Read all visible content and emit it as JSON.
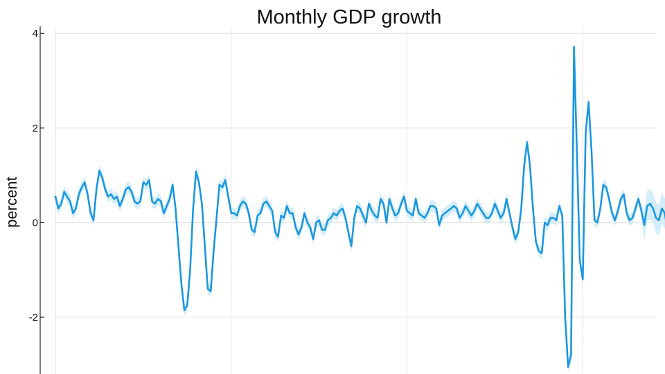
{
  "chart_data": {
    "type": "line",
    "title": "Monthly GDP growth",
    "xlabel": "",
    "ylabel": "percent",
    "ylim": [
      -3.2,
      4.15
    ],
    "xlim": [
      0,
      205
    ],
    "yticks": [
      -2,
      0,
      2,
      4
    ],
    "ytick_labels": [
      "-2",
      "0",
      "2",
      "4"
    ],
    "xgrid_at": [
      0,
      60,
      120,
      180
    ],
    "grid": true,
    "legend": "none",
    "colors": {
      "line": "#1b97df",
      "band": "#c8e9f8",
      "grid": "#e4e4e4",
      "axis": "#222222"
    },
    "series": [
      {
        "values": [
          0.55,
          0.3,
          0.4,
          0.65,
          0.55,
          0.45,
          0.2,
          0.3,
          0.6,
          0.75,
          0.85,
          0.6,
          0.2,
          0.05,
          0.7,
          1.1,
          0.95,
          0.7,
          0.55,
          0.6,
          0.5,
          0.55,
          0.35,
          0.5,
          0.7,
          0.75,
          0.65,
          0.45,
          0.4,
          0.45,
          0.85,
          0.8,
          0.9,
          0.45,
          0.4,
          0.5,
          0.45,
          0.2,
          0.35,
          0.5,
          0.8,
          0.3,
          -0.5,
          -1.3,
          -1.85,
          -1.75,
          -1.0,
          0.3,
          1.08,
          0.85,
          0.4,
          -0.5,
          -1.4,
          -1.45,
          -0.6,
          0.1,
          0.8,
          0.75,
          0.9,
          0.55,
          0.2,
          0.2,
          0.15,
          0.35,
          0.45,
          0.4,
          0.2,
          -0.15,
          -0.2,
          0.15,
          0.2,
          0.4,
          0.45,
          0.35,
          0.25,
          -0.2,
          -0.3,
          0.15,
          0.1,
          0.35,
          0.2,
          0.2,
          -0.1,
          -0.25,
          -0.1,
          0.2,
          0.0,
          -0.1,
          -0.35,
          0.0,
          0.05,
          -0.15,
          -0.15,
          0.05,
          0.1,
          0.2,
          0.15,
          0.25,
          0.3,
          0.1,
          -0.2,
          -0.5,
          0.1,
          0.35,
          0.3,
          0.15,
          0.0,
          0.4,
          0.25,
          0.15,
          0.1,
          0.5,
          0.4,
          0.0,
          0.5,
          0.3,
          0.15,
          0.2,
          0.4,
          0.55,
          0.25,
          0.2,
          0.15,
          0.5,
          0.2,
          0.15,
          0.1,
          0.2,
          0.35,
          0.35,
          0.3,
          -0.05,
          0.15,
          0.2,
          0.25,
          0.3,
          0.35,
          0.3,
          0.1,
          0.2,
          0.35,
          0.25,
          0.15,
          0.25,
          0.4,
          0.3,
          0.2,
          0.1,
          0.1,
          0.2,
          0.4,
          0.25,
          0.1,
          0.2,
          0.5,
          0.2,
          -0.1,
          -0.35,
          -0.2,
          0.3,
          1.2,
          1.7,
          1.2,
          0.3,
          -0.4,
          -0.6,
          -0.65,
          0.0,
          -0.05,
          0.1,
          0.1,
          0.05,
          0.35,
          0.15,
          -2.0,
          -3.05,
          -2.8,
          3.72,
          1.5,
          -0.8,
          -1.2,
          1.9,
          2.55,
          1.5,
          0.05,
          0.0,
          0.3,
          0.8,
          0.75,
          0.5,
          0.2,
          0.05,
          0.25,
          0.5,
          0.6,
          0.2,
          0.05,
          0.1,
          0.3,
          0.5,
          0.25,
          -0.05,
          0.35,
          0.4,
          0.3,
          0.1,
          0.05,
          0.3,
          0.2,
          -0.2,
          0.1,
          0.4,
          0.4
        ]
      }
    ]
  }
}
